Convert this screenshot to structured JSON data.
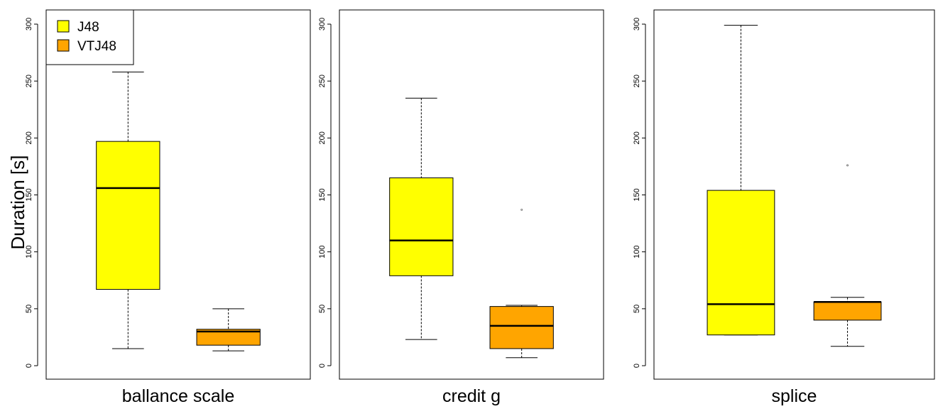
{
  "chart_data": {
    "type": "boxplot",
    "ylabel": "Duration [s]",
    "ylim": [
      0,
      300
    ],
    "yticks": [
      0,
      50,
      100,
      150,
      200,
      250,
      300
    ],
    "legend": {
      "placement": "top-left",
      "entries": [
        {
          "name": "J48",
          "color": "#ffff00"
        },
        {
          "name": "VTJ48",
          "color": "#ffa500"
        }
      ]
    },
    "panels": [
      {
        "xlabel": "ballance scale",
        "boxes": [
          {
            "series": "J48",
            "min": 15,
            "q1": 67,
            "median": 156,
            "q3": 197,
            "max": 258,
            "outliers": []
          },
          {
            "series": "VTJ48",
            "min": 13,
            "q1": 18,
            "median": 30,
            "q3": 32,
            "max": 50,
            "outliers": []
          }
        ]
      },
      {
        "xlabel": "credit g",
        "boxes": [
          {
            "series": "J48",
            "min": 23,
            "q1": 79,
            "median": 110,
            "q3": 165,
            "max": 235,
            "outliers": []
          },
          {
            "series": "VTJ48",
            "min": 7,
            "q1": 15,
            "median": 35,
            "q3": 52,
            "max": 53,
            "outliers": [
              137
            ]
          }
        ]
      },
      {
        "xlabel": "splice",
        "boxes": [
          {
            "series": "J48",
            "min": 27,
            "q1": 27,
            "median": 54,
            "q3": 154,
            "max": 299,
            "outliers": []
          },
          {
            "series": "VTJ48",
            "min": 17,
            "q1": 40,
            "median": 56,
            "q3": 56,
            "max": 60,
            "outliers": [
              176
            ]
          }
        ]
      }
    ]
  }
}
